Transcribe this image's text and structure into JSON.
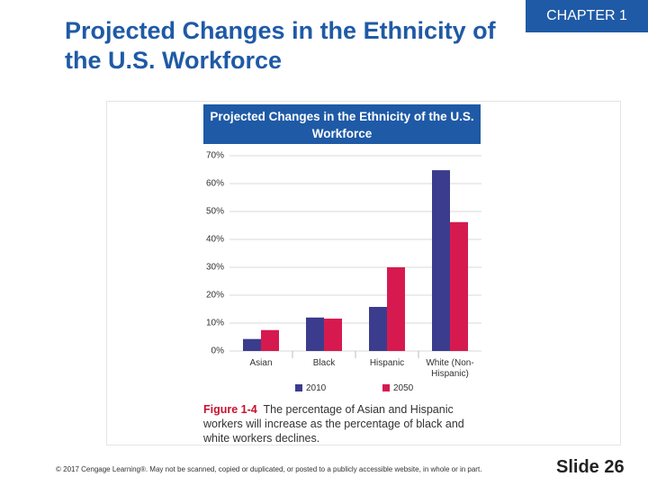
{
  "slide": {
    "title": "Projected Changes in the Ethnicity of the U.S. Workforce",
    "chapter": "CHAPTER 1",
    "copyright": "© 2017 Cengage Learning®. May not be scanned, copied or duplicated, or posted to a publicly accessible website, in whole or in part.",
    "slide_number": "Slide 26"
  },
  "figure": {
    "label": "Figure 1-4",
    "caption": "The percentage of Asian and Hispanic workers will increase as the percentage of black and white workers declines."
  },
  "chart_data": {
    "type": "bar",
    "title": "Projected Changes in the Ethnicity of the U.S. Workforce",
    "categories": [
      "Asian",
      "Black",
      "Hispanic",
      "White (Non-Hispanic)"
    ],
    "series": [
      {
        "name": "2010",
        "color": "#3c3c8e",
        "values": [
          4.3,
          12,
          15.8,
          64.8
        ]
      },
      {
        "name": "2050",
        "color": "#d61a50",
        "values": [
          7.5,
          11.6,
          30,
          46.2
        ]
      }
    ],
    "ylim": [
      0,
      70
    ],
    "yticks": [
      {
        "value": 0,
        "label": "0%"
      },
      {
        "value": 10,
        "label": "10%"
      },
      {
        "value": 20,
        "label": "20%"
      },
      {
        "value": 30,
        "label": "30%"
      },
      {
        "value": 40,
        "label": "40%"
      },
      {
        "value": 50,
        "label": "50%"
      },
      {
        "value": 60,
        "label": "60%"
      },
      {
        "value": 70,
        "label": "70%"
      }
    ],
    "grid": true
  }
}
